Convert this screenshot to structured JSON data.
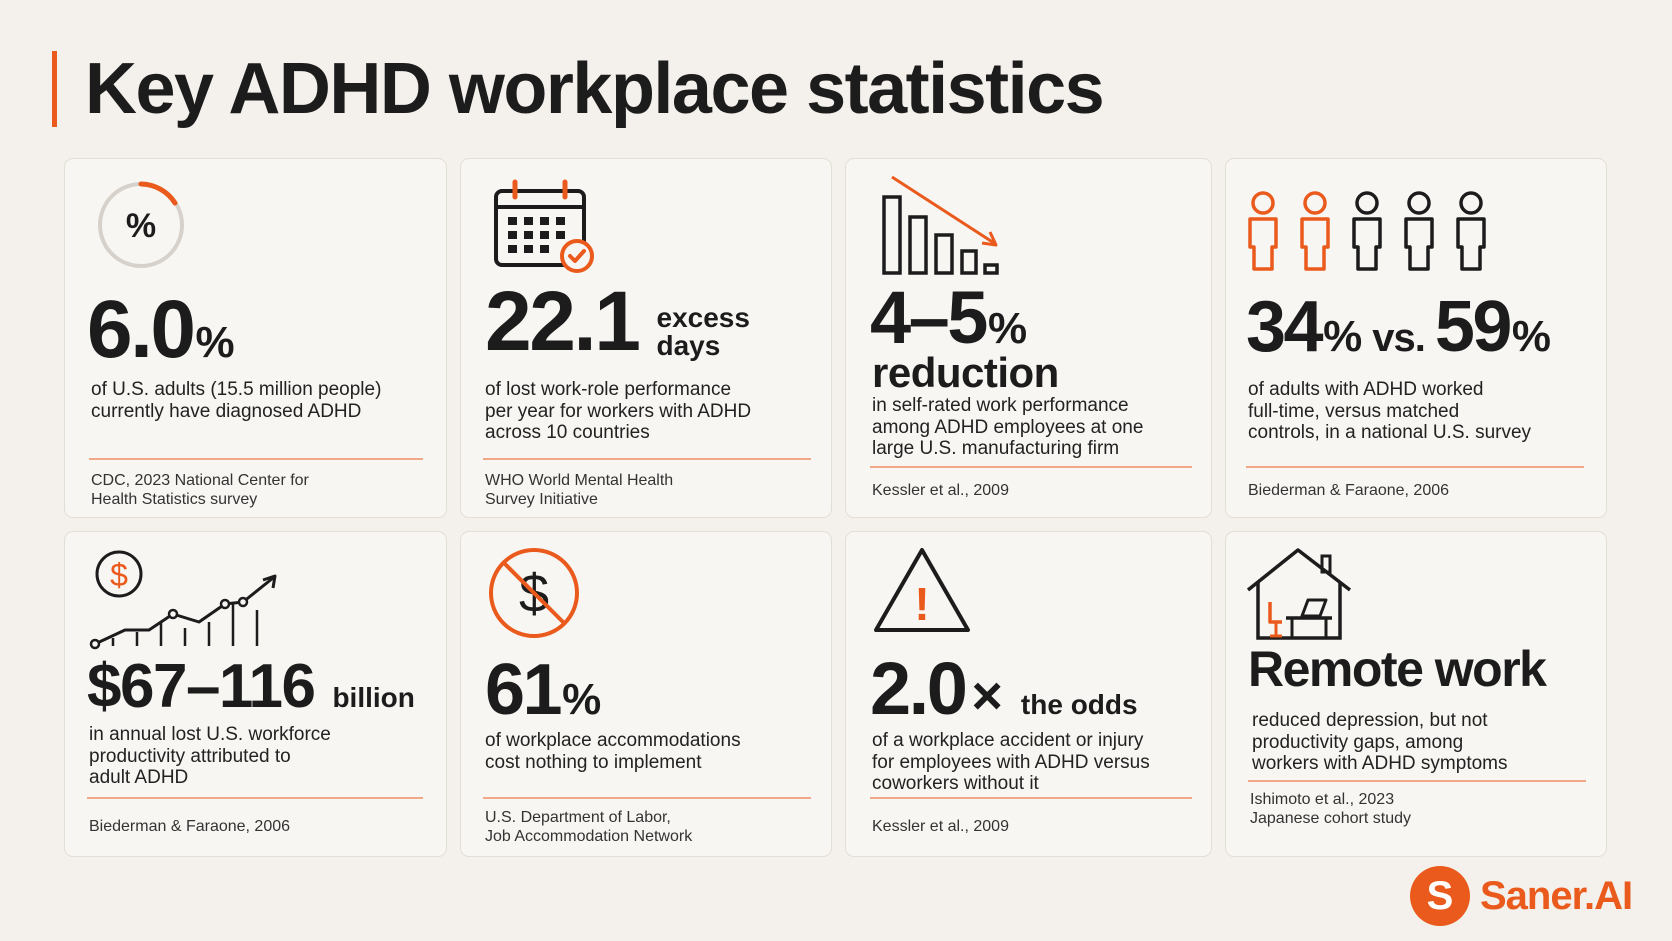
{
  "title": "Key ADHD workplace statistics",
  "colors": {
    "accent": "#ea5a1c",
    "ink": "#1c1c1c",
    "background": "#f4f1ec",
    "rule": "#f0a889"
  },
  "brand": {
    "name": "Saner.AI",
    "logo_letter": "S"
  },
  "cards": [
    {
      "icon": "percent-progress-icon",
      "icon_text": "%",
      "value": "6.0",
      "unit": "%",
      "description": [
        "of U.S. adults (15.5 million people)",
        "currently have diagnosed ADHD"
      ],
      "source": [
        "CDC, 2023 National Center for",
        "Health Statistics survey"
      ]
    },
    {
      "icon": "calendar-check-icon",
      "value": "22.1",
      "suffix": [
        "excess",
        "days"
      ],
      "description": [
        "of lost work-role performance",
        "per year for workers with ADHD",
        "across 10 countries"
      ],
      "source": [
        "WHO World Mental Health",
        "Survey Initiative"
      ]
    },
    {
      "icon": "declining-bars-icon",
      "value": "4–5",
      "unit": "%",
      "subtitle": "reduction",
      "description": [
        "in self-rated work performance",
        "among ADHD employees at one",
        "large U.S. manufacturing firm"
      ],
      "source": [
        "Kessler et al., 2009"
      ]
    },
    {
      "icon": "people-icon",
      "value_a": "34",
      "unit_a": "%",
      "vs": "vs.",
      "value_b": "59",
      "unit_b": "%",
      "description": [
        "of adults with ADHD worked",
        "full-time, versus matched",
        "controls, in a national U.S. survey"
      ],
      "source": [
        "Biederman & Faraone, 2006"
      ]
    },
    {
      "icon": "dollar-growth-chart-icon",
      "icon_text": "$",
      "value": "$67–116",
      "suffix": [
        "billion"
      ],
      "description": [
        "in annual lost U.S. workforce",
        "productivity attributed to",
        "adult ADHD"
      ],
      "source": [
        "Biederman & Faraone, 2006"
      ]
    },
    {
      "icon": "no-dollar-icon",
      "icon_text": "$",
      "value": "61",
      "unit": "%",
      "description": [
        "of workplace accommodations",
        "cost nothing to implement"
      ],
      "source": [
        "U.S. Department of Labor,",
        "Job Accommodation Network"
      ]
    },
    {
      "icon": "warning-triangle-icon",
      "icon_text": "!",
      "value": "2.0",
      "unit": "×",
      "suffix": [
        "the odds"
      ],
      "description": [
        "of a workplace accident or injury",
        "for employees with ADHD versus",
        "coworkers without it"
      ],
      "source": [
        "Kessler et al., 2009"
      ]
    },
    {
      "icon": "home-office-icon",
      "heading": "Remote work",
      "description": [
        "reduced depression, but not",
        "productivity gaps, among",
        "workers with ADHD symptoms"
      ],
      "source": [
        "Ishimoto et al., 2023",
        "Japanese cohort study"
      ]
    }
  ]
}
